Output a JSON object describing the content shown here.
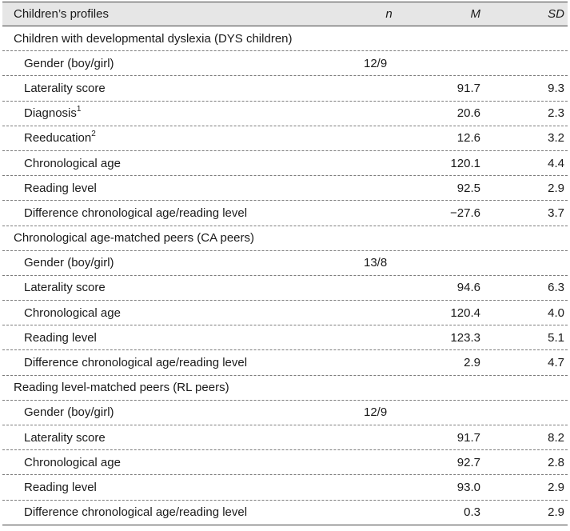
{
  "header": {
    "label": "Children’s profiles",
    "n": "n",
    "m": "M",
    "sd": "SD"
  },
  "groups": [
    {
      "title": "Children with developmental dyslexia (DYS children)",
      "rows": [
        {
          "label": "Gender (boy/girl)",
          "n": "12/9",
          "m": "",
          "sd": ""
        },
        {
          "label": "Laterality score",
          "n": "",
          "m": "91.7",
          "sd": "9.3"
        },
        {
          "label": "Diagnosis",
          "sup": "1",
          "n": "",
          "m": "20.6",
          "sd": "2.3"
        },
        {
          "label": "Reeducation",
          "sup": "2",
          "n": "",
          "m": "12.6",
          "sd": "3.2"
        },
        {
          "label": "Chronological age",
          "n": "",
          "m": "120.1",
          "sd": "4.4"
        },
        {
          "label": "Reading level",
          "n": "",
          "m": "92.5",
          "sd": "2.9"
        },
        {
          "label": "Difference chronological age/reading level",
          "n": "",
          "m": "−27.6",
          "sd": "3.7"
        }
      ]
    },
    {
      "title": "Chronological age-matched peers (CA peers)",
      "rows": [
        {
          "label": "Gender (boy/girl)",
          "n": "13/8",
          "m": "",
          "sd": ""
        },
        {
          "label": "Laterality score",
          "n": "",
          "m": "94.6",
          "sd": "6.3"
        },
        {
          "label": "Chronological age",
          "n": "",
          "m": "120.4",
          "sd": "4.0"
        },
        {
          "label": "Reading level",
          "n": "",
          "m": "123.3",
          "sd": "5.1"
        },
        {
          "label": "Difference chronological age/reading level",
          "n": "",
          "m": "2.9",
          "sd": "4.7"
        }
      ]
    },
    {
      "title": "Reading level-matched peers (RL peers)",
      "rows": [
        {
          "label": "Gender (boy/girl)",
          "n": "12/9",
          "m": "",
          "sd": ""
        },
        {
          "label": "Laterality score",
          "n": "",
          "m": "91.7",
          "sd": "8.2"
        },
        {
          "label": "Chronological age",
          "n": "",
          "m": "92.7",
          "sd": "2.8"
        },
        {
          "label": "Reading level",
          "n": "",
          "m": "93.0",
          "sd": "2.9"
        },
        {
          "label": "Difference chronological age/reading level",
          "n": "",
          "m": "0.3",
          "sd": "2.9"
        }
      ]
    }
  ]
}
